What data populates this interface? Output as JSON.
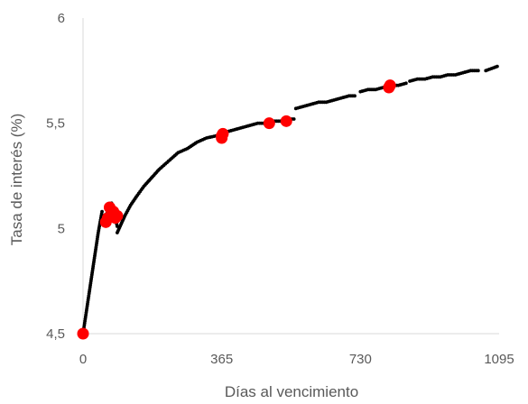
{
  "chart_data": {
    "type": "scatter",
    "title": "",
    "xlabel": "Días al vencimiento",
    "ylabel": "Tasa de interés (%)",
    "xlim": [
      0,
      1095
    ],
    "ylim": [
      4.5,
      6
    ],
    "x_ticks": [
      0,
      365,
      730,
      1095
    ],
    "x_tick_labels": [
      "0",
      "365",
      "730",
      "1095"
    ],
    "y_ticks": [
      4.5,
      5,
      5.5,
      6
    ],
    "y_tick_labels": [
      "4,5",
      "5",
      "5,5",
      "6"
    ],
    "grid": false,
    "legend": "none",
    "colors": {
      "curve": "#000000",
      "observed": "#ff0000",
      "axis": "#d9d9d9",
      "text": "#595959"
    },
    "series": [
      {
        "marker": "small-dot",
        "segments": [
          {
            "x": [
              0,
              5,
              10,
              15,
              20,
              25,
              30,
              35,
              40,
              45,
              50
            ],
            "y": [
              4.5,
              4.56,
              4.62,
              4.68,
              4.74,
              4.8,
              4.86,
              4.92,
              4.98,
              5.03,
              5.08
            ]
          },
          {
            "x": [
              60,
              65,
              70,
              75,
              80,
              85,
              90
            ],
            "y": [
              5.06,
              5.08,
              5.1,
              5.12,
              5.09,
              5.05,
              5.01
            ]
          },
          {
            "x": [
              90,
              100,
              110,
              125,
              140,
              160,
              180,
              200,
              225,
              250,
              275,
              300,
              325,
              350,
              365,
              380,
              400,
              420,
              440,
              460,
              480,
              500,
              520,
              540,
              555
            ],
            "y": [
              4.98,
              5.02,
              5.06,
              5.11,
              5.15,
              5.2,
              5.24,
              5.28,
              5.32,
              5.36,
              5.38,
              5.41,
              5.43,
              5.44,
              5.45,
              5.46,
              5.47,
              5.48,
              5.49,
              5.5,
              5.5,
              5.51,
              5.51,
              5.52,
              5.52
            ]
          },
          {
            "x": [
              560,
              580,
              600,
              620,
              640,
              660,
              680,
              700,
              715
            ],
            "y": [
              5.57,
              5.58,
              5.59,
              5.6,
              5.6,
              5.61,
              5.62,
              5.63,
              5.63
            ]
          },
          {
            "x": [
              730,
              750,
              770,
              790,
              810,
              830,
              850
            ],
            "y": [
              5.65,
              5.66,
              5.66,
              5.67,
              5.68,
              5.68,
              5.69
            ]
          },
          {
            "x": [
              860,
              880,
              900,
              920,
              940,
              960,
              980,
              1000,
              1020,
              1040
            ],
            "y": [
              5.7,
              5.71,
              5.71,
              5.72,
              5.72,
              5.73,
              5.73,
              5.74,
              5.75,
              5.75
            ]
          },
          {
            "x": [
              1060,
              1075,
              1090
            ],
            "y": [
              5.75,
              5.76,
              5.77
            ]
          }
        ]
      },
      {
        "marker": "large-dot",
        "x": [
          0,
          60,
          65,
          70,
          75,
          80,
          85,
          90,
          365,
          368,
          365,
          490,
          535,
          805,
          808
        ],
        "y": [
          4.5,
          5.03,
          5.05,
          5.1,
          5.06,
          5.08,
          5.05,
          5.06,
          5.43,
          5.45,
          5.44,
          5.5,
          5.51,
          5.67,
          5.68
        ]
      }
    ]
  }
}
